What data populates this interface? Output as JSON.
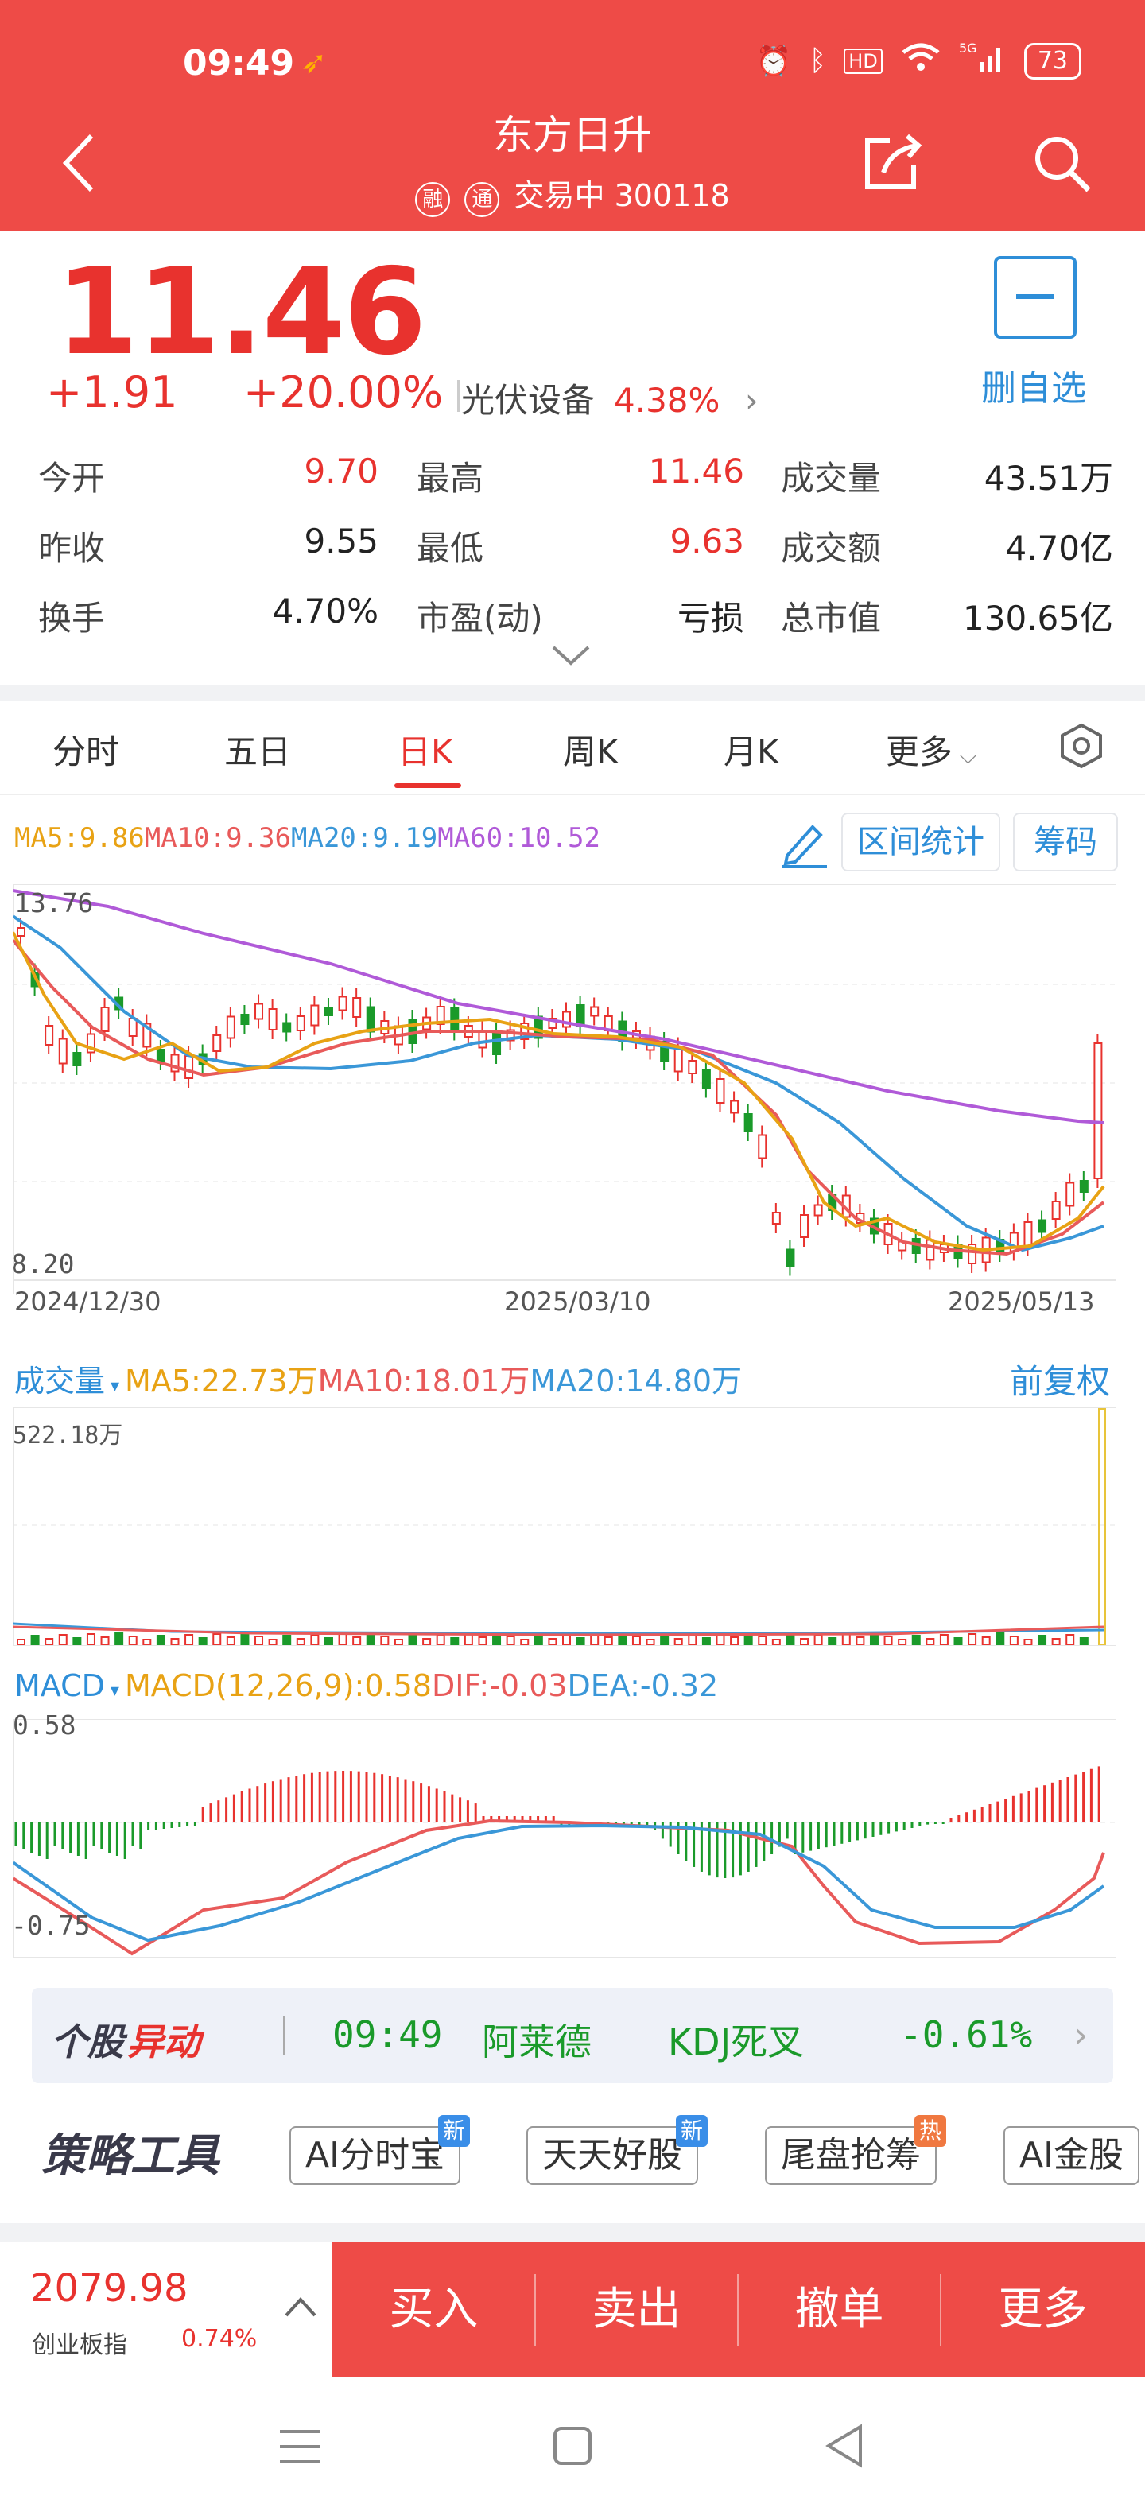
{
  "status_bar": {
    "time": "09:49",
    "battery": "73",
    "network": "5G"
  },
  "header": {
    "title": "东方日升",
    "badge_rong": "融",
    "badge_tong": "通",
    "subtitle": "交易中 300118"
  },
  "quote": {
    "price": "11.46",
    "change": "+1.91",
    "change_pct": "+20.00%",
    "sector_name": "光伏设备",
    "sector_pct": "4.38%",
    "fav_label": "删自选",
    "stats": {
      "open_label": "今开",
      "open": "9.70",
      "high_label": "最高",
      "high": "11.46",
      "volume_label": "成交量",
      "volume": "43.51万",
      "prev_close_label": "昨收",
      "prev_close": "9.55",
      "low_label": "最低",
      "low": "9.63",
      "amount_label": "成交额",
      "amount": "4.70亿",
      "turnover_label": "换手",
      "turnover": "4.70%",
      "pe_label": "市盈(动)",
      "pe": "亏损",
      "mktcap_label": "总市值",
      "mktcap": "130.65亿"
    }
  },
  "tabs": [
    "分时",
    "五日",
    "日K",
    "周K",
    "月K",
    "更多"
  ],
  "active_tab": "日K",
  "kline": {
    "ma5": "MA5:9.86",
    "ma10": "MA10:9.36",
    "ma20": "MA20:9.19",
    "ma60": "MA60:10.52",
    "btn_range": "区间统计",
    "btn_chip": "筹码",
    "y_high": "13.76",
    "y_low": "8.20",
    "date_start": "2024/12/30",
    "date_mid": "2025/03/10",
    "date_end": "2025/05/13"
  },
  "volume": {
    "label": "成交量",
    "ma5": "MA5:22.73万",
    "ma10": "MA10:18.01万",
    "ma20": "MA20:14.80万",
    "adjust": "前复权",
    "y_max": "522.18万"
  },
  "macd": {
    "label": "MACD",
    "macd": "MACD(12,26,9):0.58",
    "dif": "DIF:-0.03",
    "dea": "DEA:-0.32",
    "y_high": "0.58",
    "y_low": "-0.75"
  },
  "alert": {
    "logo_a": "个股",
    "logo_b": "异动",
    "time": "09:49",
    "name": "阿莱德",
    "signal": "KDJ死叉",
    "pct": "-0.61%"
  },
  "tools": {
    "logo": "策略工具",
    "items": [
      {
        "label": "AI分时宝",
        "badge": "新"
      },
      {
        "label": "天天好股",
        "badge": "新"
      },
      {
        "label": "尾盘抢筹",
        "badge": "热"
      },
      {
        "label": "AI金股",
        "badge": ""
      }
    ]
  },
  "index": {
    "value": "2079.98",
    "name": "创业板指",
    "pct": "0.74%"
  },
  "trade": {
    "buy": "买入",
    "sell": "卖出",
    "cancel": "撤单",
    "more": "更多"
  },
  "colors": {
    "brand_red": "#ee4b47",
    "up": "#e8322e",
    "down": "#1a9a2a",
    "ma5": "#e8a214",
    "ma10": "#e85a5a",
    "ma20": "#3a97d8",
    "ma60": "#b05ad8",
    "link": "#2e8ed8"
  }
}
